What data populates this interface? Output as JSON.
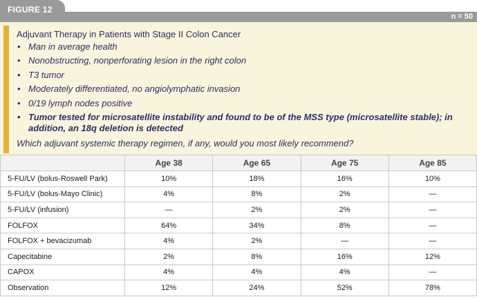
{
  "figure_label": "FIGURE 12",
  "n_label": "n = 50",
  "colors": {
    "header_gray": "#9a9a9a",
    "case_background": "#f9f4dc",
    "accent": "#e5b234",
    "text_navy": "#2b2f66"
  },
  "case": {
    "title": "Adjuvant Therapy in Patients with Stage II Colon Cancer",
    "bullets": [
      {
        "text": "Man in average health",
        "bold": false
      },
      {
        "text": "Nonobstructing, nonperforating lesion in the right colon",
        "bold": false
      },
      {
        "text": "T3 tumor",
        "bold": false
      },
      {
        "text": "Moderately differentiated, no angiolymphatic invasion",
        "bold": false
      },
      {
        "text": "0/19 lymph nodes positive",
        "bold": false
      },
      {
        "text": "Tumor tested for microsatellite instability and found to be of the MSS type (microsatellite stable); in addition, an 18q deletion is detected",
        "bold": true
      }
    ],
    "question": "Which adjuvant systemic therapy regimen, if any, would you most likely recommend?"
  },
  "table": {
    "headers": [
      "",
      "Age 38",
      "Age 65",
      "Age 75",
      "Age 85"
    ],
    "rows": [
      [
        "5-FU/LV (bolus-Roswell Park)",
        "10%",
        "18%",
        "16%",
        "10%"
      ],
      [
        "5-FU/LV (bolus-Mayo Clinic)",
        "4%",
        "8%",
        "2%",
        "—"
      ],
      [
        "5-FU/LV (infusion)",
        "—",
        "2%",
        "2%",
        "—"
      ],
      [
        "FOLFOX",
        "64%",
        "34%",
        "8%",
        "—"
      ],
      [
        "FOLFOX + bevacizumab",
        "4%",
        "2%",
        "—",
        "—"
      ],
      [
        "Capecitabine",
        "2%",
        "8%",
        "16%",
        "12%"
      ],
      [
        "CAPOX",
        "4%",
        "4%",
        "4%",
        "—"
      ],
      [
        "Observation",
        "12%",
        "24%",
        "52%",
        "78%"
      ]
    ]
  }
}
